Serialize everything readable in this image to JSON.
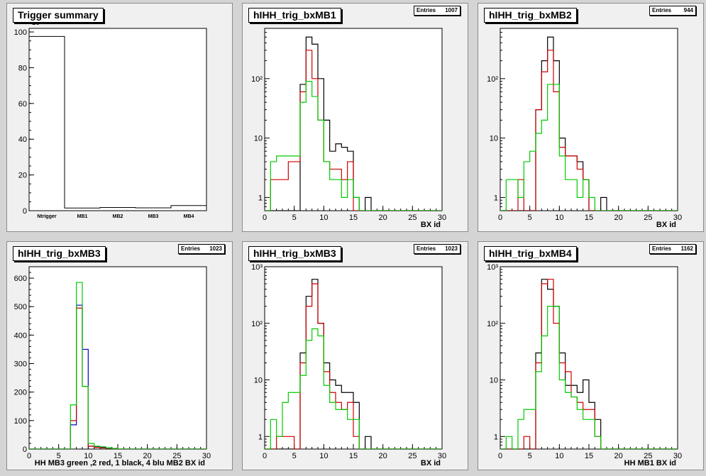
{
  "panels": [
    {
      "title": "Trigger summary",
      "stats": null,
      "xlabel": "",
      "chart_data": {
        "type": "bar",
        "categories": [
          "Ntrigger",
          "MB1",
          "MB2",
          "MB3",
          "MB4"
        ],
        "values": [
          97.5,
          1.5,
          1.8,
          1.6,
          2.9
        ],
        "ylim": [
          0,
          102
        ],
        "yticks": [
          0,
          20,
          40,
          60,
          80,
          100
        ],
        "y_exponent_label": "×10³"
      }
    },
    {
      "title": "hIHH_trig_bxMB1",
      "stats": {
        "label": "Entries",
        "value": "1007"
      },
      "xlabel": "BX id",
      "chart_data": {
        "type": "line",
        "log_y": true,
        "xlim": [
          0,
          30
        ],
        "ylim": [
          0.6,
          700
        ],
        "xticks": [
          0,
          5,
          10,
          15,
          20,
          25,
          30
        ],
        "yticks": [
          {
            "v": 1,
            "l": "1"
          },
          {
            "v": 10,
            "l": "10"
          },
          {
            "v": 100,
            "l": "10²"
          }
        ],
        "series": [
          {
            "color": "#000000",
            "values": [
              0,
              0,
              0,
              0,
              0,
              0,
              80,
              500,
              380,
              100,
              20,
              6,
              8,
              7,
              6,
              1,
              0,
              1,
              0,
              0,
              0,
              0,
              0,
              0,
              0,
              0,
              0,
              0,
              0,
              0
            ]
          },
          {
            "color": "#cc0000",
            "values": [
              0,
              2,
              2,
              2,
              4,
              4,
              60,
              300,
              100,
              20,
              4,
              3,
              3,
              2,
              4,
              0,
              0,
              0,
              0,
              0,
              0,
              0,
              0,
              0,
              0,
              0,
              0,
              0,
              0,
              0
            ]
          },
          {
            "color": "#00cc00",
            "values": [
              0,
              4,
              5,
              5,
              5,
              5,
              40,
              90,
              50,
              20,
              4,
              2,
              2,
              1,
              2,
              1,
              0,
              0,
              0,
              0,
              0,
              0,
              0,
              0,
              0,
              0,
              0,
              0,
              0,
              0
            ]
          }
        ]
      }
    },
    {
      "title": "hIHH_trig_bxMB2",
      "stats": {
        "label": "Entries",
        "value": "944"
      },
      "xlabel": "BX id",
      "chart_data": {
        "type": "line",
        "log_y": true,
        "xlim": [
          0,
          30
        ],
        "ylim": [
          0.6,
          700
        ],
        "xticks": [
          0,
          5,
          10,
          15,
          20,
          25,
          30
        ],
        "yticks": [
          {
            "v": 1,
            "l": "1"
          },
          {
            "v": 10,
            "l": "10"
          },
          {
            "v": 100,
            "l": "10²"
          }
        ],
        "series": [
          {
            "color": "#000000",
            "values": [
              0,
              0,
              0,
              0,
              0,
              0,
              30,
              200,
              500,
              200,
              10,
              5,
              5,
              4,
              2,
              0,
              0,
              1,
              0,
              0,
              0,
              0,
              0,
              0,
              0,
              0,
              0,
              0,
              0,
              0
            ]
          },
          {
            "color": "#cc0000",
            "values": [
              0,
              0,
              0,
              2,
              0,
              0,
              30,
              130,
              300,
              60,
              7,
              5,
              5,
              3,
              2,
              0,
              0,
              0,
              0,
              0,
              0,
              0,
              0,
              0,
              0,
              0,
              0,
              0,
              0,
              0
            ]
          },
          {
            "color": "#00cc00",
            "values": [
              0,
              2,
              2,
              1,
              4,
              6,
              12,
              20,
              80,
              80,
              5,
              2,
              2,
              1,
              2,
              1,
              0,
              0,
              0,
              0,
              0,
              0,
              0,
              0,
              0,
              0,
              0,
              0,
              0,
              0
            ]
          }
        ]
      }
    },
    {
      "title": "hIHH_trig_bxMB3",
      "stats": {
        "label": "Entries",
        "value": "1023"
      },
      "xlabel": "HH  MB3 green ,2 red, 1 black, 4 blu   MB2 BX id",
      "chart_data": {
        "type": "line",
        "log_y": false,
        "xlim": [
          0,
          30
        ],
        "ylim": [
          0,
          640
        ],
        "xticks": [
          0,
          5,
          10,
          15,
          20,
          25,
          30
        ],
        "yticks": [
          {
            "v": 0,
            "l": "0"
          },
          {
            "v": 100,
            "l": "100"
          },
          {
            "v": 200,
            "l": "200"
          },
          {
            "v": 300,
            "l": "300"
          },
          {
            "v": 400,
            "l": "400"
          },
          {
            "v": 500,
            "l": "500"
          },
          {
            "v": 600,
            "l": "600"
          }
        ],
        "series": [
          {
            "color": "#0000cc",
            "values": [
              0,
              0,
              0,
              0,
              0,
              0,
              0,
              85,
              505,
              350,
              10,
              8,
              6,
              4,
              2,
              0,
              0,
              0,
              0,
              0,
              0,
              0,
              0,
              0,
              0,
              0,
              0,
              0,
              0,
              0
            ]
          },
          {
            "color": "#cc0000",
            "values": [
              0,
              0,
              0,
              0,
              0,
              0,
              0,
              100,
              495,
              220,
              10,
              6,
              4,
              3,
              2,
              0,
              0,
              0,
              0,
              0,
              0,
              0,
              0,
              0,
              0,
              0,
              0,
              0,
              0,
              0
            ]
          },
          {
            "color": "#00cc00",
            "values": [
              0,
              0,
              0,
              0,
              0,
              0,
              0,
              155,
              585,
              220,
              20,
              10,
              8,
              4,
              2,
              0,
              0,
              0,
              0,
              0,
              0,
              0,
              0,
              0,
              0,
              0,
              0,
              0,
              0,
              0
            ]
          }
        ]
      }
    },
    {
      "title": "hIHH_trig_bxMB3",
      "stats": {
        "label": "Entries",
        "value": "1023"
      },
      "xlabel": "BX id",
      "chart_data": {
        "type": "line",
        "log_y": true,
        "xlim": [
          0,
          30
        ],
        "ylim": [
          0.6,
          1000
        ],
        "xticks": [
          0,
          5,
          10,
          15,
          20,
          25,
          30
        ],
        "yticks": [
          {
            "v": 1,
            "l": "1"
          },
          {
            "v": 10,
            "l": "10"
          },
          {
            "v": 100,
            "l": "10²"
          },
          {
            "v": 1000,
            "l": "10³"
          }
        ],
        "series": [
          {
            "color": "#000000",
            "values": [
              0,
              0,
              0,
              0,
              0,
              0,
              30,
              300,
              600,
              100,
              20,
              10,
              8,
              6,
              6,
              4,
              0,
              1,
              0,
              0,
              0,
              0,
              0,
              0,
              0,
              0,
              0,
              0,
              0,
              0
            ]
          },
          {
            "color": "#cc0000",
            "values": [
              0,
              0,
              1,
              1,
              1,
              0,
              20,
              200,
              500,
              100,
              14,
              6,
              4,
              3,
              4,
              1,
              0,
              0,
              0,
              0,
              0,
              0,
              0,
              0,
              0,
              0,
              0,
              0,
              0,
              0
            ]
          },
          {
            "color": "#00cc00",
            "values": [
              0,
              2,
              1,
              4,
              6,
              6,
              12,
              50,
              80,
              60,
              8,
              4,
              3,
              3,
              2,
              2,
              0,
              0,
              0,
              0,
              0,
              0,
              0,
              0,
              0,
              0,
              0,
              0,
              0,
              0
            ]
          }
        ]
      }
    },
    {
      "title": "hIHH_trig_bxMB4",
      "stats": {
        "label": "Entries",
        "value": "1162"
      },
      "xlabel": "HH MB1 BX id",
      "chart_data": {
        "type": "line",
        "log_y": true,
        "xlim": [
          0,
          30
        ],
        "ylim": [
          0.6,
          1000
        ],
        "xticks": [
          0,
          5,
          10,
          15,
          20,
          25,
          30
        ],
        "yticks": [
          {
            "v": 1,
            "l": "1"
          },
          {
            "v": 10,
            "l": "10"
          },
          {
            "v": 100,
            "l": "10²"
          },
          {
            "v": 1000,
            "l": "10³"
          }
        ],
        "series": [
          {
            "color": "#000000",
            "values": [
              0,
              0,
              0,
              0,
              0,
              0,
              30,
              600,
              400,
              200,
              30,
              8,
              8,
              6,
              10,
              4,
              2,
              0,
              0,
              0,
              0,
              0,
              0,
              0,
              0,
              0,
              0,
              0,
              0,
              0
            ]
          },
          {
            "color": "#cc0000",
            "values": [
              0,
              0,
              0,
              0,
              1,
              0,
              20,
              500,
              600,
              100,
              20,
              14,
              5,
              4,
              3,
              3,
              1,
              0,
              0,
              0,
              0,
              0,
              0,
              0,
              0,
              0,
              0,
              0,
              0,
              0
            ]
          },
          {
            "color": "#00cc00",
            "values": [
              0,
              1,
              0,
              2,
              3,
              3,
              14,
              60,
              200,
              200,
              10,
              6,
              5,
              3,
              2,
              2,
              1,
              0,
              0,
              0,
              0,
              0,
              0,
              0,
              0,
              0,
              0,
              0,
              0,
              0
            ]
          }
        ]
      }
    }
  ]
}
